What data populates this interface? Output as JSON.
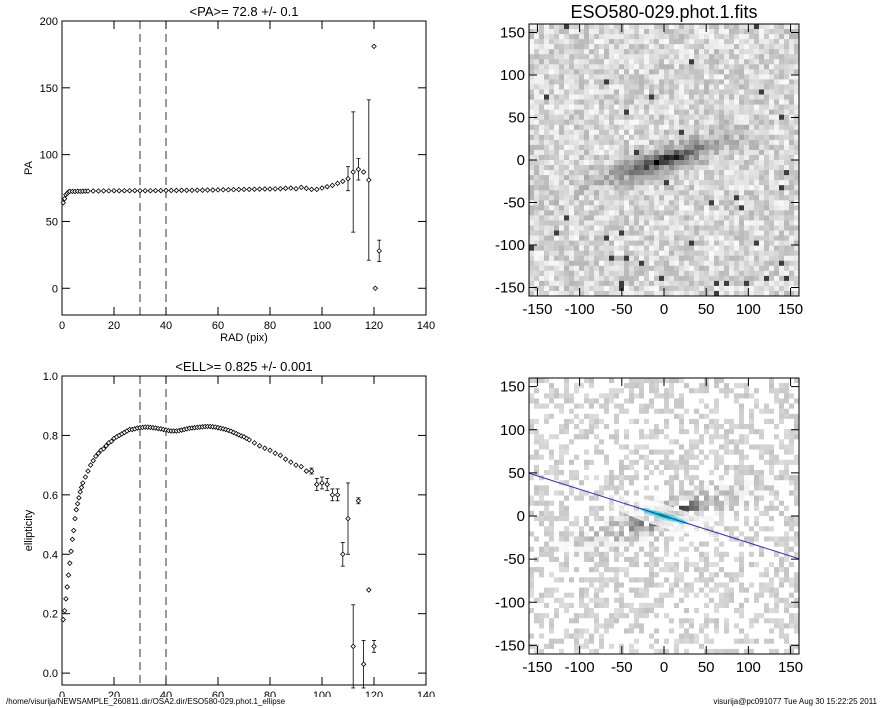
{
  "chart_data": [
    {
      "type": "scatter",
      "title": "<PA>=  72.8 +/-   0.1",
      "xlabel": "RAD (pix)",
      "ylabel": "PA",
      "xlim": [
        0,
        140
      ],
      "ylim": [
        -20,
        200
      ],
      "xticks": [
        0,
        20,
        40,
        60,
        80,
        100,
        120,
        140
      ],
      "yticks": [
        0,
        50,
        100,
        150,
        200
      ],
      "grid": false,
      "vlines": [
        30,
        40
      ],
      "points": [
        {
          "x": 0.5,
          "y": 64
        },
        {
          "x": 1.0,
          "y": 67
        },
        {
          "x": 1.5,
          "y": 70
        },
        {
          "x": 2.0,
          "y": 71
        },
        {
          "x": 2.5,
          "y": 72
        },
        {
          "x": 3.0,
          "y": 72.5
        },
        {
          "x": 4,
          "y": 72.5
        },
        {
          "x": 5,
          "y": 72.4
        },
        {
          "x": 6,
          "y": 72.6
        },
        {
          "x": 7,
          "y": 72.5
        },
        {
          "x": 8,
          "y": 72.6
        },
        {
          "x": 9,
          "y": 72.7
        },
        {
          "x": 10,
          "y": 72.7
        },
        {
          "x": 12,
          "y": 72.8
        },
        {
          "x": 14,
          "y": 72.8
        },
        {
          "x": 16,
          "y": 72.9
        },
        {
          "x": 18,
          "y": 72.9
        },
        {
          "x": 20,
          "y": 73.0
        },
        {
          "x": 22,
          "y": 73.0
        },
        {
          "x": 24,
          "y": 73.0
        },
        {
          "x": 26,
          "y": 73.0
        },
        {
          "x": 28,
          "y": 73.1
        },
        {
          "x": 30,
          "y": 73.0
        },
        {
          "x": 32,
          "y": 73.0
        },
        {
          "x": 34,
          "y": 73.0
        },
        {
          "x": 36,
          "y": 73.1
        },
        {
          "x": 38,
          "y": 73.1
        },
        {
          "x": 40,
          "y": 73.2
        },
        {
          "x": 42,
          "y": 73.2
        },
        {
          "x": 44,
          "y": 73.2
        },
        {
          "x": 46,
          "y": 73.3
        },
        {
          "x": 48,
          "y": 73.3
        },
        {
          "x": 50,
          "y": 73.3
        },
        {
          "x": 52,
          "y": 73.4
        },
        {
          "x": 54,
          "y": 73.4
        },
        {
          "x": 56,
          "y": 73.5
        },
        {
          "x": 58,
          "y": 73.5
        },
        {
          "x": 60,
          "y": 73.6
        },
        {
          "x": 62,
          "y": 73.7
        },
        {
          "x": 64,
          "y": 73.7
        },
        {
          "x": 66,
          "y": 73.8
        },
        {
          "x": 68,
          "y": 73.9
        },
        {
          "x": 70,
          "y": 74.0
        },
        {
          "x": 72,
          "y": 74.0
        },
        {
          "x": 74,
          "y": 74.1
        },
        {
          "x": 76,
          "y": 74.2
        },
        {
          "x": 78,
          "y": 74.3
        },
        {
          "x": 80,
          "y": 74.3
        },
        {
          "x": 82,
          "y": 74.4
        },
        {
          "x": 84,
          "y": 74.5
        },
        {
          "x": 86,
          "y": 74.8
        },
        {
          "x": 88,
          "y": 75.0
        },
        {
          "x": 90,
          "y": 74.5
        },
        {
          "x": 92,
          "y": 75.5
        },
        {
          "x": 94,
          "y": 74.8
        },
        {
          "x": 96,
          "y": 74.0
        },
        {
          "x": 98,
          "y": 74.0
        },
        {
          "x": 100,
          "y": 75.0
        },
        {
          "x": 102,
          "y": 76.0
        },
        {
          "x": 104,
          "y": 77.0
        },
        {
          "x": 106,
          "y": 78.5
        },
        {
          "x": 108,
          "y": 80.0
        },
        {
          "x": 110,
          "y": 82.0,
          "err": 9
        },
        {
          "x": 112,
          "y": 87.0,
          "err": 45
        },
        {
          "x": 114,
          "y": 89.0,
          "err": 8
        },
        {
          "x": 116,
          "y": 87.0
        },
        {
          "x": 118,
          "y": 81.0,
          "err": 60
        },
        {
          "x": 120,
          "y": 181.0
        },
        {
          "x": 120.5,
          "y": 0.0
        },
        {
          "x": 122,
          "y": 28.0,
          "err": 8
        }
      ]
    },
    {
      "type": "scatter",
      "title": "<ELL>= 0.825 +/-  0.001",
      "xlabel": "RAD (pix)",
      "ylabel": "ellipticity",
      "xlim": [
        0,
        140
      ],
      "ylim": [
        -0.04,
        1.0
      ],
      "xticks": [
        0,
        20,
        40,
        60,
        80,
        100,
        120,
        140
      ],
      "yticks": [
        0.0,
        0.2,
        0.4,
        0.6,
        0.8,
        1.0
      ],
      "grid": false,
      "vlines": [
        30,
        40
      ],
      "points": [
        {
          "x": 0.5,
          "y": 0.18
        },
        {
          "x": 1.0,
          "y": 0.21
        },
        {
          "x": 1.5,
          "y": 0.25
        },
        {
          "x": 2.0,
          "y": 0.29
        },
        {
          "x": 2.5,
          "y": 0.33
        },
        {
          "x": 3.0,
          "y": 0.37
        },
        {
          "x": 3.5,
          "y": 0.41
        },
        {
          "x": 4.0,
          "y": 0.45
        },
        {
          "x": 4.5,
          "y": 0.48
        },
        {
          "x": 5.0,
          "y": 0.52
        },
        {
          "x": 5.5,
          "y": 0.55
        },
        {
          "x": 6.0,
          "y": 0.57
        },
        {
          "x": 6.5,
          "y": 0.59
        },
        {
          "x": 7.0,
          "y": 0.61
        },
        {
          "x": 7.5,
          "y": 0.625
        },
        {
          "x": 8.0,
          "y": 0.64
        },
        {
          "x": 9.0,
          "y": 0.66
        },
        {
          "x": 10.0,
          "y": 0.68
        },
        {
          "x": 11,
          "y": 0.7
        },
        {
          "x": 12,
          "y": 0.715
        },
        {
          "x": 13,
          "y": 0.73
        },
        {
          "x": 14,
          "y": 0.74
        },
        {
          "x": 15,
          "y": 0.75
        },
        {
          "x": 16,
          "y": 0.755
        },
        {
          "x": 17,
          "y": 0.765
        },
        {
          "x": 18,
          "y": 0.775
        },
        {
          "x": 19,
          "y": 0.78
        },
        {
          "x": 20,
          "y": 0.79
        },
        {
          "x": 21,
          "y": 0.795
        },
        {
          "x": 22,
          "y": 0.8
        },
        {
          "x": 23,
          "y": 0.805
        },
        {
          "x": 24,
          "y": 0.81
        },
        {
          "x": 25,
          "y": 0.815
        },
        {
          "x": 26,
          "y": 0.82
        },
        {
          "x": 27,
          "y": 0.82
        },
        {
          "x": 28,
          "y": 0.822
        },
        {
          "x": 29,
          "y": 0.825
        },
        {
          "x": 30,
          "y": 0.826
        },
        {
          "x": 31,
          "y": 0.827
        },
        {
          "x": 32,
          "y": 0.828
        },
        {
          "x": 33,
          "y": 0.828
        },
        {
          "x": 34,
          "y": 0.827
        },
        {
          "x": 35,
          "y": 0.826
        },
        {
          "x": 36,
          "y": 0.825
        },
        {
          "x": 37,
          "y": 0.823
        },
        {
          "x": 38,
          "y": 0.822
        },
        {
          "x": 39,
          "y": 0.82
        },
        {
          "x": 40,
          "y": 0.818
        },
        {
          "x": 41,
          "y": 0.816
        },
        {
          "x": 42,
          "y": 0.815
        },
        {
          "x": 43,
          "y": 0.815
        },
        {
          "x": 44,
          "y": 0.815
        },
        {
          "x": 45,
          "y": 0.816
        },
        {
          "x": 46,
          "y": 0.818
        },
        {
          "x": 47,
          "y": 0.82
        },
        {
          "x": 48,
          "y": 0.822
        },
        {
          "x": 49,
          "y": 0.824
        },
        {
          "x": 50,
          "y": 0.825
        },
        {
          "x": 51,
          "y": 0.826
        },
        {
          "x": 52,
          "y": 0.827
        },
        {
          "x": 53,
          "y": 0.828
        },
        {
          "x": 54,
          "y": 0.829
        },
        {
          "x": 55,
          "y": 0.83
        },
        {
          "x": 56,
          "y": 0.83
        },
        {
          "x": 57,
          "y": 0.83
        },
        {
          "x": 58,
          "y": 0.829
        },
        {
          "x": 59,
          "y": 0.828
        },
        {
          "x": 60,
          "y": 0.826
        },
        {
          "x": 61,
          "y": 0.824
        },
        {
          "x": 62,
          "y": 0.822
        },
        {
          "x": 63,
          "y": 0.82
        },
        {
          "x": 64,
          "y": 0.817
        },
        {
          "x": 65,
          "y": 0.814
        },
        {
          "x": 66,
          "y": 0.81
        },
        {
          "x": 67,
          "y": 0.806
        },
        {
          "x": 68,
          "y": 0.802
        },
        {
          "x": 69,
          "y": 0.798
        },
        {
          "x": 70,
          "y": 0.795
        },
        {
          "x": 71,
          "y": 0.79
        },
        {
          "x": 72,
          "y": 0.785
        },
        {
          "x": 74,
          "y": 0.775
        },
        {
          "x": 76,
          "y": 0.765
        },
        {
          "x": 78,
          "y": 0.757
        },
        {
          "x": 80,
          "y": 0.75
        },
        {
          "x": 82,
          "y": 0.74
        },
        {
          "x": 84,
          "y": 0.733
        },
        {
          "x": 86,
          "y": 0.72
        },
        {
          "x": 88,
          "y": 0.71
        },
        {
          "x": 90,
          "y": 0.7
        },
        {
          "x": 92,
          "y": 0.695
        },
        {
          "x": 94,
          "y": 0.68
        },
        {
          "x": 96,
          "y": 0.68,
          "err": 0.01
        },
        {
          "x": 98,
          "y": 0.635,
          "err": 0.02
        },
        {
          "x": 100,
          "y": 0.64,
          "err": 0.02
        },
        {
          "x": 102,
          "y": 0.635,
          "err": 0.02
        },
        {
          "x": 104,
          "y": 0.6,
          "err": 0.02
        },
        {
          "x": 106,
          "y": 0.6,
          "err": 0.02
        },
        {
          "x": 108,
          "y": 0.4,
          "err": 0.04
        },
        {
          "x": 110,
          "y": 0.52,
          "err": 0.12
        },
        {
          "x": 112,
          "y": 0.09,
          "err": 0.14
        },
        {
          "x": 114,
          "y": 0.58,
          "err": 0.01
        },
        {
          "x": 116,
          "y": 0.03,
          "err": 0.08
        },
        {
          "x": 118,
          "y": 0.28
        },
        {
          "x": 120,
          "y": 0.09,
          "err": 0.02
        }
      ]
    },
    {
      "type": "heatmap",
      "title": "ESO580-029.phot.1.fits",
      "xlim": [
        -160,
        160
      ],
      "ylim": [
        -160,
        160
      ],
      "xticks": [
        -150,
        -100,
        -50,
        0,
        50,
        100,
        150
      ],
      "yticks": [
        150,
        100,
        50,
        0,
        -50,
        -100,
        -150
      ],
      "galaxy": {
        "pa": 72.8,
        "ellipticity": 0.825,
        "size": 80
      }
    },
    {
      "type": "heatmap",
      "xlim": [
        -160,
        160
      ],
      "ylim": [
        -160,
        160
      ],
      "xticks": [
        -150,
        -100,
        -50,
        0,
        50,
        100,
        150
      ],
      "yticks": [
        150,
        100,
        50,
        0,
        -50,
        -100,
        -150
      ],
      "galaxy": {
        "pa": 72.8,
        "ellipticity": 0.825,
        "size": 70
      },
      "line_color": "#3030c0",
      "contour_color": "#ffffff",
      "center_color": "#00e0e0"
    }
  ],
  "footer": {
    "path": "/home/visurija/NEWSAMPLE_260811.dir/OSA2.dir/ESO580-029.phot.1_ellipse",
    "stamp": "visurija@pc091077  Tue Aug 30 15:22:25 2011"
  }
}
